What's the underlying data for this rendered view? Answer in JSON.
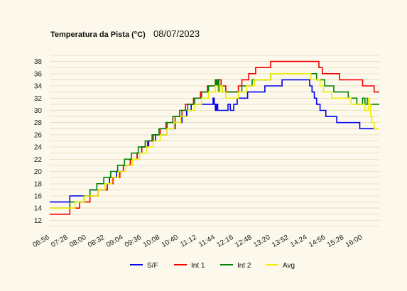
{
  "chart_data": {
    "type": "line",
    "title": "Temperatura da Pista (°C)",
    "subtitle": "08/07/2023",
    "x_ticks": [
      "06:56",
      "07:28",
      "08:00",
      "08:32",
      "09:04",
      "09:36",
      "10:08",
      "10:40",
      "11:12",
      "11:44",
      "12:16",
      "12:48",
      "13:20",
      "13:52",
      "14:24",
      "14:56",
      "15:28",
      "16:00"
    ],
    "y_ticks": [
      12,
      14,
      16,
      18,
      20,
      22,
      24,
      26,
      28,
      30,
      32,
      34,
      36,
      38
    ],
    "xlim": [
      "06:56",
      "16:29"
    ],
    "ylim": [
      11,
      39
    ],
    "grid": true,
    "legend_position": "bottom",
    "colors": {
      "S/F": "#0000ee",
      "Int 1": "#ee0000",
      "Int 2": "#008000",
      "Avg": "#eeee00",
      "grid": "#e6dfc4"
    },
    "series": [
      {
        "name": "S/F",
        "x": [
          "06:56",
          "07:26",
          "07:31",
          "07:50",
          "07:56",
          "08:06",
          "08:12",
          "08:22",
          "08:30",
          "08:36",
          "08:40",
          "08:46",
          "08:52",
          "08:58",
          "09:04",
          "09:10",
          "09:16",
          "09:22",
          "09:28",
          "09:36",
          "09:42",
          "09:48",
          "09:54",
          "10:00",
          "10:08",
          "10:14",
          "10:20",
          "10:26",
          "10:34",
          "10:40",
          "10:46",
          "10:54",
          "11:02",
          "11:12",
          "11:40",
          "11:42",
          "11:44",
          "11:46",
          "11:48",
          "11:50",
          "11:54",
          "12:02",
          "12:06",
          "12:10",
          "12:16",
          "12:22",
          "12:30",
          "12:40",
          "12:50",
          "13:00",
          "13:10",
          "13:20",
          "13:40",
          "14:00",
          "14:20",
          "14:28",
          "14:32",
          "14:36",
          "14:40",
          "14:46",
          "14:52",
          "14:56",
          "15:05",
          "15:15",
          "15:35",
          "15:55",
          "16:25"
        ],
        "y": [
          15,
          15,
          16,
          16,
          16,
          17,
          17,
          17,
          17,
          18,
          19,
          19,
          20,
          20,
          21,
          21,
          22,
          22,
          23,
          24,
          24,
          25,
          25,
          26,
          26,
          26,
          27,
          27,
          28,
          28,
          29,
          30,
          31,
          31,
          32,
          31,
          30,
          31,
          30,
          30,
          30,
          30,
          31,
          30,
          31,
          32,
          32,
          33,
          33,
          33,
          34,
          34,
          35,
          35,
          35,
          34,
          33,
          32,
          31,
          30,
          30,
          29,
          29,
          28,
          28,
          27,
          27
        ]
      },
      {
        "name": "Int 1",
        "x": [
          "06:56",
          "07:26",
          "07:31",
          "07:40",
          "07:48",
          "07:56",
          "08:06",
          "08:14",
          "08:20",
          "08:28",
          "08:36",
          "08:40",
          "08:46",
          "08:50",
          "08:58",
          "09:04",
          "09:10",
          "09:16",
          "09:22",
          "09:28",
          "09:36",
          "09:42",
          "09:46",
          "09:52",
          "09:56",
          "10:02",
          "10:08",
          "10:14",
          "10:20",
          "10:26",
          "10:34",
          "10:40",
          "10:46",
          "10:52",
          "11:00",
          "11:06",
          "11:12",
          "11:18",
          "11:24",
          "11:30",
          "11:38",
          "11:44",
          "11:50",
          "11:54",
          "12:02",
          "12:16",
          "12:24",
          "12:30",
          "12:36",
          "12:42",
          "12:48",
          "12:54",
          "13:00",
          "13:08",
          "13:20",
          "13:30",
          "13:40",
          "14:00",
          "14:20",
          "14:36",
          "14:44",
          "14:50",
          "14:56",
          "15:06",
          "15:20",
          "15:40",
          "16:00",
          "16:10",
          "16:20",
          "16:29"
        ],
        "y": [
          13,
          13,
          14,
          14,
          15,
          15,
          16,
          16,
          17,
          17,
          18,
          18,
          19,
          19,
          20,
          21,
          21,
          22,
          22,
          23,
          24,
          24,
          25,
          25,
          26,
          26,
          27,
          27,
          28,
          28,
          29,
          29,
          30,
          31,
          31,
          32,
          32,
          33,
          33,
          34,
          34,
          35,
          35,
          34,
          33,
          33,
          34,
          35,
          35,
          36,
          36,
          37,
          37,
          37,
          38,
          38,
          38,
          38,
          38,
          38,
          37,
          36,
          36,
          36,
          35,
          35,
          34,
          34,
          33,
          33
        ]
      },
      {
        "name": "Int 2",
        "x": [
          "06:56",
          "07:26",
          "07:31",
          "07:40",
          "07:48",
          "07:56",
          "08:06",
          "08:12",
          "08:18",
          "08:24",
          "08:30",
          "08:36",
          "08:42",
          "08:48",
          "08:54",
          "09:00",
          "09:06",
          "09:12",
          "09:18",
          "09:24",
          "09:30",
          "09:36",
          "09:42",
          "09:48",
          "09:54",
          "10:00",
          "10:06",
          "10:12",
          "10:18",
          "10:24",
          "10:30",
          "10:36",
          "10:42",
          "10:48",
          "10:56",
          "11:02",
          "11:08",
          "11:14",
          "11:20",
          "11:26",
          "11:32",
          "11:38",
          "11:44",
          "11:46",
          "11:48",
          "11:50",
          "11:52",
          "11:56",
          "12:00",
          "12:08",
          "12:16",
          "12:24",
          "12:30",
          "12:36",
          "12:42",
          "12:48",
          "12:58",
          "13:08",
          "13:20",
          "13:40",
          "14:00",
          "14:20",
          "14:30",
          "14:40",
          "14:48",
          "14:54",
          "15:00",
          "15:10",
          "15:20",
          "15:35",
          "15:50",
          "15:54",
          "16:00",
          "16:04",
          "16:08",
          "16:12",
          "16:29"
        ],
        "y": [
          14,
          14,
          15,
          15,
          15,
          16,
          17,
          17,
          18,
          18,
          19,
          19,
          20,
          20,
          21,
          21,
          22,
          22,
          23,
          23,
          24,
          24,
          25,
          25,
          26,
          26,
          27,
          27,
          28,
          28,
          29,
          29,
          30,
          30,
          31,
          31,
          32,
          32,
          33,
          33,
          34,
          34,
          35,
          34,
          35,
          33,
          34,
          33,
          33,
          33,
          33,
          33,
          34,
          34,
          34,
          35,
          35,
          35,
          36,
          36,
          36,
          36,
          36,
          35,
          35,
          34,
          34,
          33,
          33,
          32,
          31,
          31,
          32,
          31,
          32,
          31,
          31
        ]
      },
      {
        "name": "Avg",
        "x": [
          "06:56",
          "07:26",
          "07:31",
          "07:40",
          "07:48",
          "07:56",
          "08:06",
          "08:14",
          "08:20",
          "08:26",
          "08:32",
          "08:38",
          "08:44",
          "08:50",
          "08:56",
          "09:02",
          "09:08",
          "09:14",
          "09:20",
          "09:26",
          "09:32",
          "09:38",
          "09:44",
          "09:50",
          "09:56",
          "10:02",
          "10:08",
          "10:14",
          "10:20",
          "10:26",
          "10:32",
          "10:38",
          "10:44",
          "10:50",
          "10:56",
          "11:02",
          "11:08",
          "11:14",
          "11:20",
          "11:26",
          "11:32",
          "11:38",
          "11:44",
          "11:48",
          "11:52",
          "11:56",
          "12:02",
          "12:16",
          "12:24",
          "12:30",
          "12:38",
          "12:44",
          "12:52",
          "13:00",
          "13:10",
          "13:20",
          "13:40",
          "14:00",
          "14:20",
          "14:26",
          "14:30",
          "14:40",
          "14:46",
          "14:52",
          "14:58",
          "15:06",
          "15:16",
          "15:28",
          "15:40",
          "15:52",
          "16:00",
          "16:04",
          "16:10",
          "16:12",
          "16:14",
          "16:16",
          "16:20",
          "16:29"
        ],
        "y": [
          14,
          14,
          14,
          15,
          15,
          16,
          16,
          16,
          17,
          17,
          18,
          18,
          19,
          19,
          20,
          20,
          21,
          21,
          22,
          22,
          23,
          23,
          24,
          24,
          25,
          25,
          26,
          26,
          27,
          27,
          28,
          28,
          29,
          29,
          30,
          30,
          31,
          31,
          32,
          32,
          33,
          33,
          34,
          33,
          34,
          33,
          32,
          32,
          33,
          33,
          34,
          34,
          35,
          35,
          35,
          36,
          36,
          36,
          36,
          36,
          35,
          35,
          34,
          33,
          33,
          32,
          32,
          32,
          31,
          31,
          31,
          30,
          32,
          31,
          29,
          28,
          27,
          27
        ]
      }
    ]
  }
}
